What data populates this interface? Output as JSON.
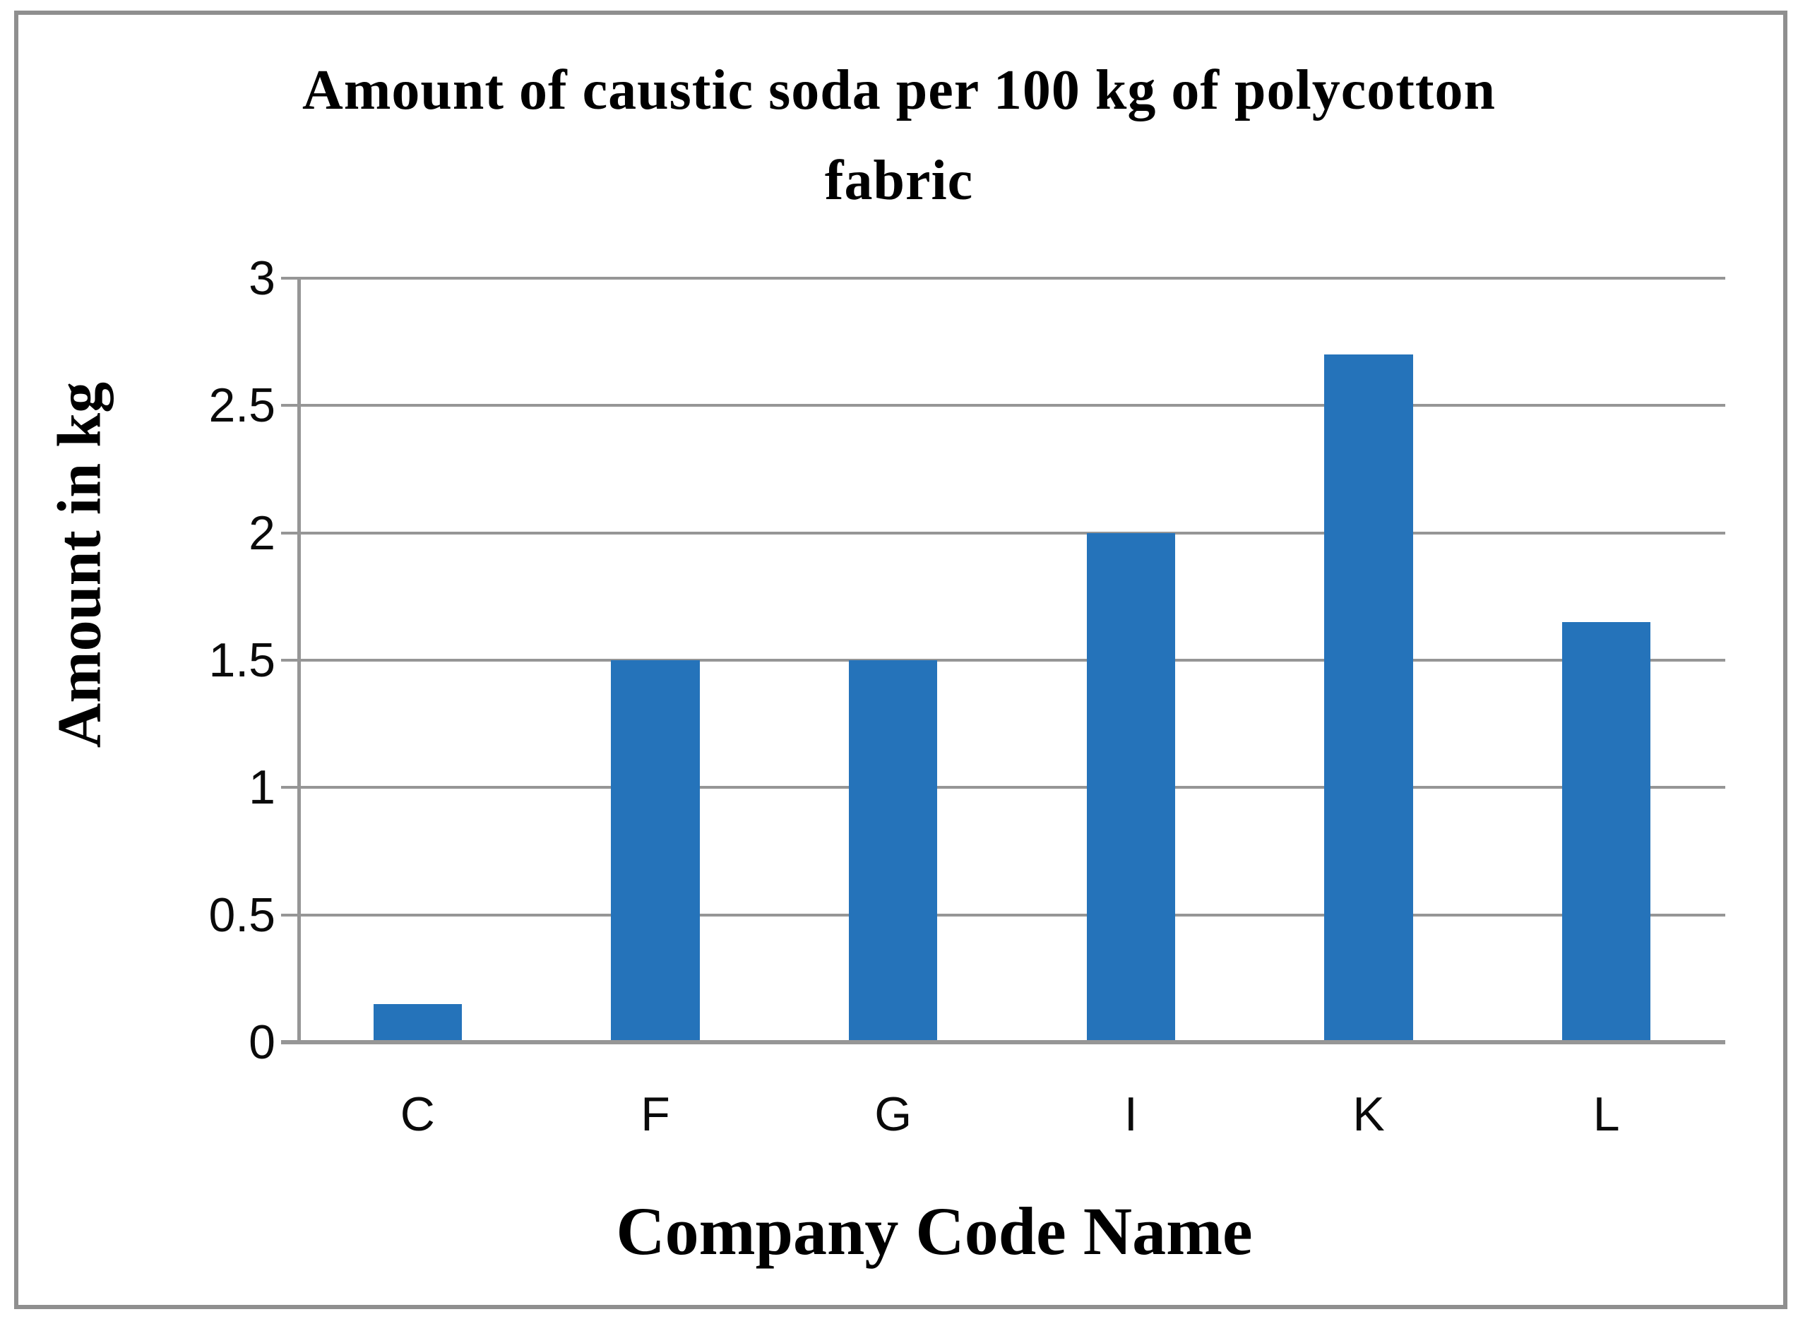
{
  "chart_data": {
    "type": "bar",
    "title": "Amount of caustic soda per 100 kg of polycotton fabric",
    "title_lines": [
      "Amount of caustic soda per 100 kg of polycotton",
      "fabric"
    ],
    "categories": [
      "C",
      "F",
      "G",
      "I",
      "K",
      "L"
    ],
    "values": [
      0.15,
      1.5,
      1.5,
      2.0,
      2.7,
      1.65
    ],
    "series": [
      {
        "name": "Amount of caustic soda",
        "values": [
          0.15,
          1.5,
          1.5,
          2.0,
          2.7,
          1.65
        ]
      }
    ],
    "xlabel": "Company Code Name",
    "ylabel": "Amount in kg",
    "ylim": [
      0,
      3
    ],
    "yticks": [
      0,
      0.5,
      1,
      1.5,
      2,
      2.5,
      3
    ],
    "ytick_labels": [
      "0",
      "0.5",
      "1",
      "1.5",
      "2",
      "2.5",
      "3"
    ],
    "grid": "horizontal-on",
    "legend": "none",
    "colors": {
      "bar": "#2573BA",
      "gridline": "#969696",
      "axis": "#969696",
      "frame": "#8F8F8F",
      "background": "#FFFFFF",
      "text": "#000000"
    }
  }
}
